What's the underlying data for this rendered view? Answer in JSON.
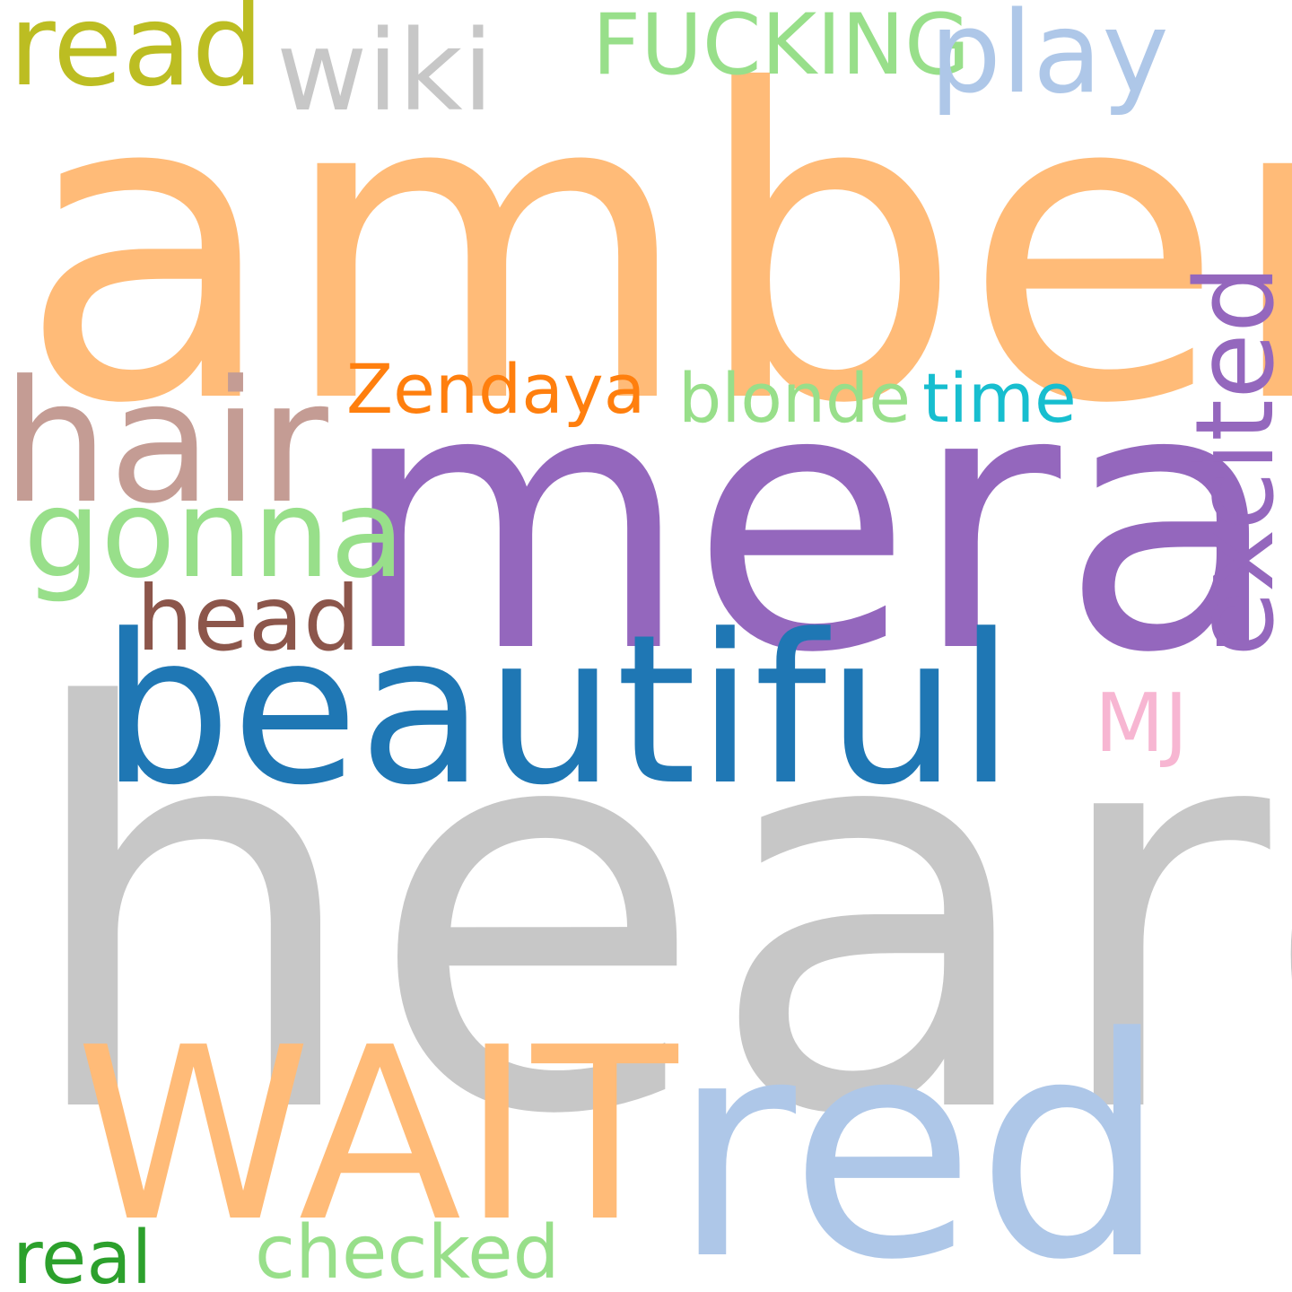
{
  "background": "#ffffff",
  "words": {
    "heard": {
      "text": "heard",
      "color": "#c7c7c7"
    },
    "amber": {
      "text": "amber",
      "color": "#ffbb78"
    },
    "mera": {
      "text": "mera",
      "color": "#9467bd"
    },
    "beautiful": {
      "text": "beautiful",
      "color": "#1f77b4"
    },
    "red": {
      "text": "red",
      "color": "#aec7e8"
    },
    "wait": {
      "text": "WAIT",
      "color": "#ffbb78"
    },
    "hair": {
      "text": "hair",
      "color": "#c49c94"
    },
    "excited": {
      "text": "excited",
      "color": "#9467bd"
    },
    "gonna": {
      "text": "gonna",
      "color": "#98df8a"
    },
    "read": {
      "text": "read",
      "color": "#bcbd22"
    },
    "wiki": {
      "text": "wiki",
      "color": "#c7c7c7"
    },
    "fucking": {
      "text": "FUCKING",
      "color": "#98df8a"
    },
    "play": {
      "text": "play",
      "color": "#aec7e8"
    },
    "head": {
      "text": "head",
      "color": "#8c564b"
    },
    "zendaya": {
      "text": "Zendaya",
      "color": "#ff7f0e"
    },
    "blonde": {
      "text": "blonde",
      "color": "#98df8a"
    },
    "time": {
      "text": "time",
      "color": "#17becf"
    },
    "mj": {
      "text": "MJ",
      "color": "#f7b6d2"
    },
    "real": {
      "text": "real",
      "color": "#2ca02c"
    },
    "checked": {
      "text": "checked",
      "color": "#98df8a"
    }
  }
}
